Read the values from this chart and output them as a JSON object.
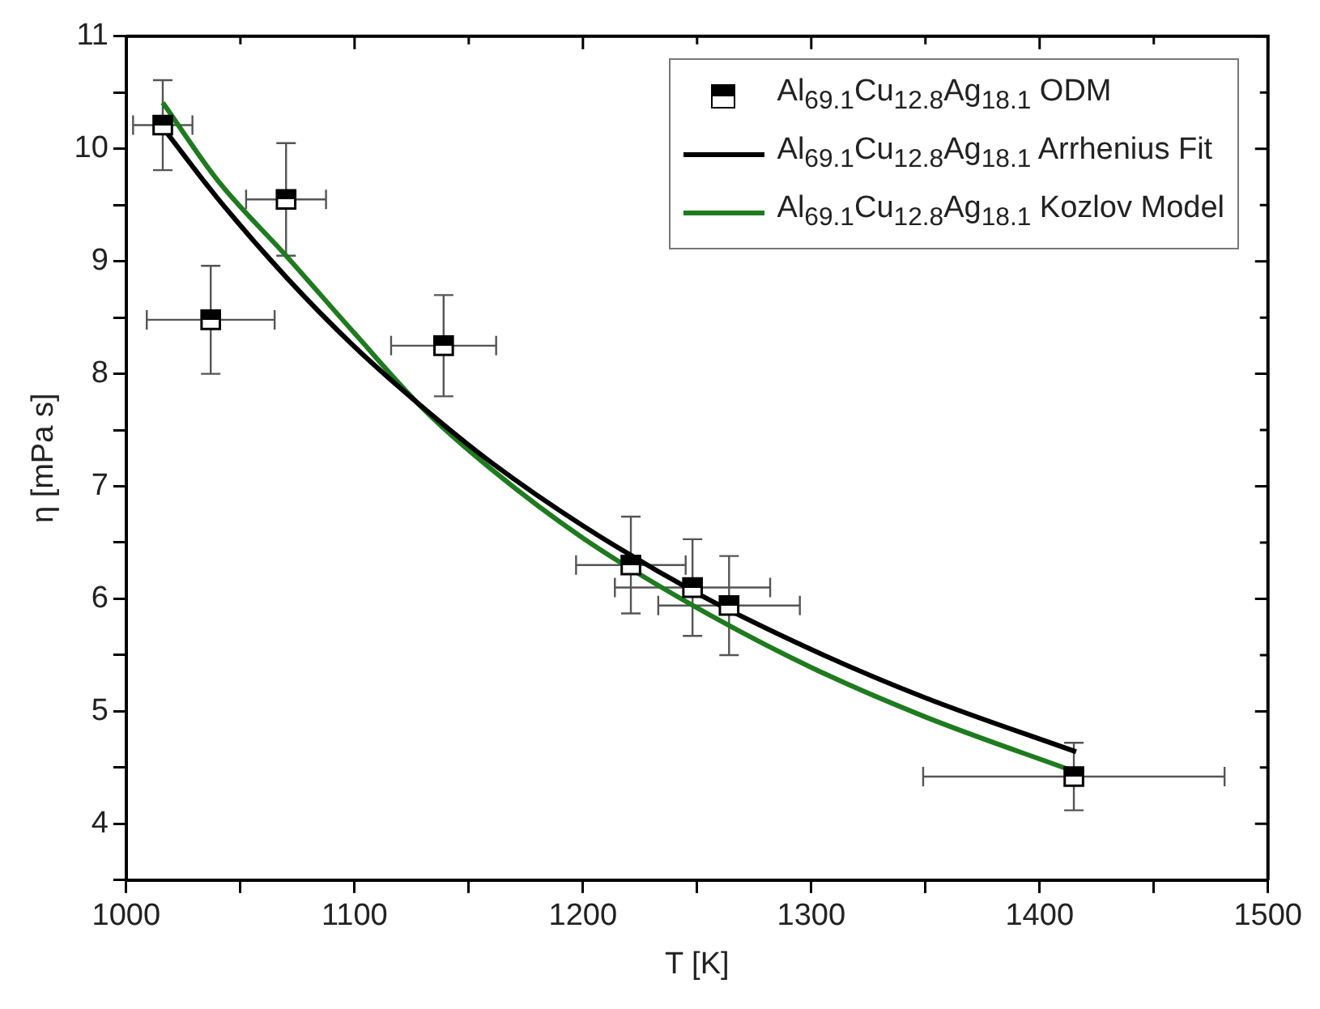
{
  "chart_data": {
    "type": "scatter",
    "xlabel": "T [K]",
    "ylabel": "η [mPa s]",
    "xlim": [
      1000,
      1500
    ],
    "xticks": [
      1000,
      {
        "value": 1050,
        "label": null
      },
      1100,
      {
        "value": 1150,
        "label": null
      },
      1200,
      {
        "value": 1250,
        "label": null
      },
      1300,
      {
        "value": 1350,
        "label": null
      },
      1400,
      {
        "value": 1450,
        "label": null
      },
      1500
    ],
    "ylim": [
      3.5,
      11
    ],
    "yticks": [
      {
        "value": 3.5,
        "label": null
      },
      4,
      {
        "value": 4.5,
        "label": null
      },
      5,
      {
        "value": 5.5,
        "label": null
      },
      6,
      {
        "value": 6.5,
        "label": null
      },
      7,
      {
        "value": 7.5,
        "label": null
      },
      8,
      {
        "value": 8.5,
        "label": null
      },
      9,
      {
        "value": 9.5,
        "label": null
      },
      10,
      {
        "value": 10.5,
        "label": null
      },
      11
    ],
    "grid": false,
    "legend": "top right",
    "series": [
      {
        "name": "Al$_{69.1}$Cu$_{12.8}$Ag$_{18.1}$ ODM",
        "type": "scatter",
        "marker": "square",
        "color": "#000000",
        "x": [
          1016,
          1037,
          1070,
          1139,
          1221,
          1248,
          1264,
          1415
        ],
        "values": [
          10.21,
          8.48,
          9.55,
          8.25,
          6.3,
          6.1,
          5.94,
          4.42
        ],
        "errors": [
          0.4,
          0.48,
          0.5,
          0.45,
          0.43,
          0.43,
          0.44,
          0.3
        ],
        "xerrors": [
          13,
          28,
          17.5,
          23,
          24,
          34,
          31,
          66
        ]
      },
      {
        "name": "Al$_{69.1}$Cu$_{12.8}$Ag$_{18.1}$ Arrhenius Fit",
        "type": "line",
        "color": "#000000",
        "x": [
          1016,
          1040,
          1070,
          1100,
          1130,
          1160,
          1200,
          1250,
          1300,
          1350,
          1416
        ],
        "values": [
          10.19,
          9.56,
          8.86,
          8.24,
          7.7,
          7.21,
          6.65,
          6.05,
          5.55,
          5.12,
          4.64
        ]
      },
      {
        "name": "Al$_{69.1}$Cu$_{12.8}$Ag$_{18.1}$ Kozlov Model",
        "type": "line",
        "color": "#1e7b1e",
        "x": [
          1016,
          1040,
          1070,
          1100,
          1130,
          1160,
          1200,
          1250,
          1300,
          1350,
          1416
        ],
        "values": [
          10.41,
          9.72,
          9.05,
          8.36,
          7.69,
          7.15,
          6.54,
          5.92,
          5.39,
          4.95,
          4.46
        ]
      }
    ]
  }
}
